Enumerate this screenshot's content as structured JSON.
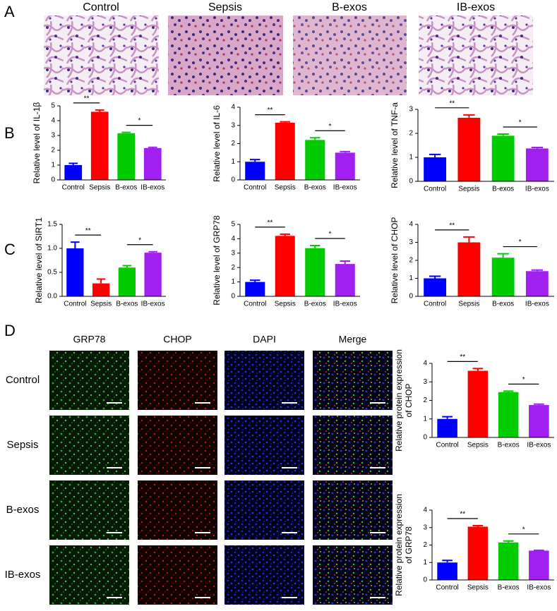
{
  "panel_labels": [
    "A",
    "B",
    "C",
    "D"
  ],
  "panel_a": {
    "columns": [
      "Control",
      "Sepsis",
      "B-exos",
      "IB-exos"
    ]
  },
  "panel_d": {
    "columns": [
      "GRP78",
      "CHOP",
      "DAPI",
      "Merge"
    ],
    "rows": [
      "Control",
      "Sepsis",
      "B-exos",
      "IB-exos"
    ]
  },
  "chart_data": [
    {
      "type": "bar",
      "ylabel": [
        "Relative  level of IL-1β"
      ],
      "categories": [
        "Control",
        "Sepsis",
        "B-exos",
        "IB-exos"
      ],
      "colors": [
        "#0000ff",
        "#ff0000",
        "#00cc00",
        "#a020f0"
      ],
      "values": [
        1.0,
        4.6,
        3.15,
        2.15
      ],
      "errors": [
        0.12,
        0.12,
        0.06,
        0.05
      ],
      "ylim": [
        0,
        5
      ],
      "yticks": [
        0,
        1,
        2,
        3,
        4,
        5
      ],
      "comparisons": [
        {
          "pair": [
            "Control",
            "Sepsis"
          ],
          "label": "**"
        },
        {
          "pair": [
            "B-exos",
            "IB-exos"
          ],
          "label": "*"
        }
      ]
    },
    {
      "type": "bar",
      "ylabel": [
        "Relative  level of IL-6"
      ],
      "categories": [
        "Control",
        "Sepsis",
        "B-exos",
        "IB-exos"
      ],
      "colors": [
        "#0000ff",
        "#ff0000",
        "#00cc00",
        "#a020f0"
      ],
      "values": [
        1.0,
        3.15,
        2.2,
        1.5
      ],
      "errors": [
        0.12,
        0.05,
        0.12,
        0.06
      ],
      "ylim": [
        0,
        4
      ],
      "yticks": [
        0,
        1,
        2,
        3,
        4
      ],
      "comparisons": [
        {
          "pair": [
            "Control",
            "Sepsis"
          ],
          "label": "**"
        },
        {
          "pair": [
            "B-exos",
            "IB-exos"
          ],
          "label": "*"
        }
      ]
    },
    {
      "type": "bar",
      "ylabel": [
        "Relative  level of TNF-a"
      ],
      "categories": [
        "Control",
        "Sepsis",
        "B-exos",
        "IB-exos"
      ],
      "colors": [
        "#0000ff",
        "#ff0000",
        "#00cc00",
        "#a020f0"
      ],
      "values": [
        1.0,
        2.65,
        1.9,
        1.37
      ],
      "errors": [
        0.12,
        0.12,
        0.07,
        0.04
      ],
      "ylim": [
        0,
        3
      ],
      "yticks": [
        0,
        1,
        2,
        3
      ],
      "comparisons": [
        {
          "pair": [
            "Control",
            "Sepsis"
          ],
          "label": "**"
        },
        {
          "pair": [
            "B-exos",
            "IB-exos"
          ],
          "label": "*"
        }
      ]
    },
    {
      "type": "bar",
      "ylabel": [
        "Relative  level of SIRT1"
      ],
      "categories": [
        "Control",
        "Sepsis",
        "B-exos",
        "IB-exos"
      ],
      "colors": [
        "#0000ff",
        "#ff0000",
        "#00cc00",
        "#a020f0"
      ],
      "values": [
        1.0,
        0.27,
        0.6,
        0.91
      ],
      "errors": [
        0.13,
        0.09,
        0.04,
        0.02
      ],
      "ylim": [
        0,
        1.5
      ],
      "yticks": [
        {
          "value": 0,
          "label": "0.0"
        },
        0.5,
        {
          "value": 1,
          "label": "1.0"
        },
        1.5
      ],
      "comparisons": [
        {
          "pair": [
            "Control",
            "Sepsis"
          ],
          "label": "**"
        },
        {
          "pair": [
            "B-exos",
            "IB-exos"
          ],
          "label": "*"
        }
      ]
    },
    {
      "type": "bar",
      "ylabel": [
        "Relative  level of GRP78"
      ],
      "categories": [
        "Control",
        "Sepsis",
        "B-exos",
        "IB-exos"
      ],
      "colors": [
        "#0000ff",
        "#ff0000",
        "#00cc00",
        "#a020f0"
      ],
      "values": [
        1.0,
        4.2,
        3.35,
        2.25
      ],
      "errors": [
        0.12,
        0.12,
        0.18,
        0.2
      ],
      "ylim": [
        0,
        5
      ],
      "yticks": [
        0,
        1,
        2,
        3,
        4,
        5
      ],
      "comparisons": [
        {
          "pair": [
            "Control",
            "Sepsis"
          ],
          "label": "**"
        },
        {
          "pair": [
            "B-exos",
            "IB-exos"
          ],
          "label": "*"
        }
      ]
    },
    {
      "type": "bar",
      "ylabel": [
        "Relative  level of CHOP"
      ],
      "categories": [
        "Control",
        "Sepsis",
        "B-exos",
        "IB-exos"
      ],
      "colors": [
        "#0000ff",
        "#ff0000",
        "#00cc00",
        "#a020f0"
      ],
      "values": [
        1.0,
        3.0,
        2.15,
        1.4
      ],
      "errors": [
        0.12,
        0.3,
        0.22,
        0.06
      ],
      "ylim": [
        0,
        4
      ],
      "yticks": [
        0,
        1,
        2,
        3,
        4
      ],
      "comparisons": [
        {
          "pair": [
            "Control",
            "Sepsis"
          ],
          "label": "**"
        },
        {
          "pair": [
            "B-exos",
            "IB-exos"
          ],
          "label": "*"
        }
      ]
    },
    {
      "type": "bar",
      "ylabel": [
        "Relative protein expression",
        "of CHOP"
      ],
      "categories": [
        "Control",
        "Sepsis",
        "B-exos",
        "IB-exos"
      ],
      "colors": [
        "#0000ff",
        "#ff0000",
        "#00cc00",
        "#a020f0"
      ],
      "values": [
        1.0,
        3.6,
        2.45,
        1.75
      ],
      "errors": [
        0.12,
        0.12,
        0.05,
        0.05
      ],
      "ylim": [
        0,
        4
      ],
      "yticks": [
        0,
        1,
        2,
        3,
        4
      ],
      "comparisons": [
        {
          "pair": [
            "Control",
            "Sepsis"
          ],
          "label": "**"
        },
        {
          "pair": [
            "B-exos",
            "IB-exos"
          ],
          "label": "*"
        }
      ]
    },
    {
      "type": "bar",
      "ylabel": [
        "Relative protein expression",
        "of GRP78"
      ],
      "categories": [
        "Control",
        "Sepsis",
        "B-exos",
        "IB-exos"
      ],
      "colors": [
        "#0000ff",
        "#ff0000",
        "#00cc00",
        "#a020f0"
      ],
      "values": [
        1.0,
        3.05,
        2.15,
        1.68
      ],
      "errors": [
        0.12,
        0.06,
        0.08,
        0.02
      ],
      "ylim": [
        0,
        4
      ],
      "yticks": [
        0,
        1,
        2,
        3,
        4
      ],
      "comparisons": [
        {
          "pair": [
            "Control",
            "Sepsis"
          ],
          "label": "**"
        },
        {
          "pair": [
            "B-exos",
            "IB-exos"
          ],
          "label": "*"
        }
      ]
    }
  ]
}
